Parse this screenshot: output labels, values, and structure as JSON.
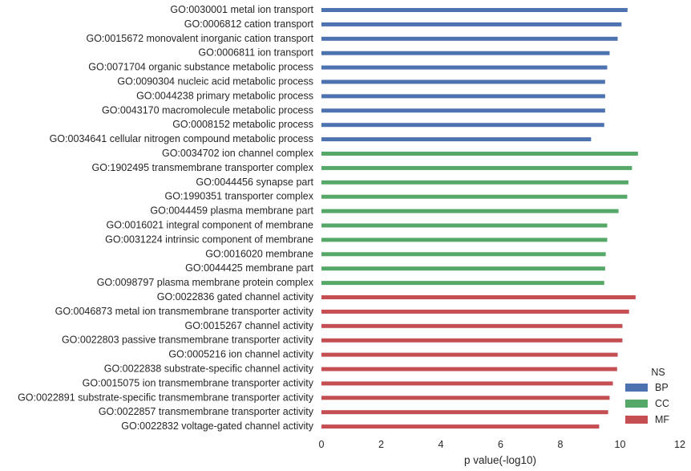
{
  "chart_data": {
    "type": "bar",
    "orientation": "horizontal",
    "xlabel": "p value(-log10)",
    "ylabel": "",
    "xlim": [
      0,
      12
    ],
    "xticks": [
      0,
      2,
      4,
      6,
      8,
      10,
      12
    ],
    "grid": false,
    "legend": {
      "title": "NS",
      "position": "bottom-right",
      "entries": [
        {
          "name": "BP",
          "color": "#4c72b0"
        },
        {
          "name": "CC",
          "color": "#55a868"
        },
        {
          "name": "MF",
          "color": "#c44e52"
        }
      ]
    },
    "bars": [
      {
        "label": "GO:0030001 metal ion transport",
        "group": "BP",
        "value": 10.25
      },
      {
        "label": "GO:0006812 cation transport",
        "group": "BP",
        "value": 10.05
      },
      {
        "label": "GO:0015672 monovalent inorganic cation transport",
        "group": "BP",
        "value": 9.92
      },
      {
        "label": "GO:0006811 ion transport",
        "group": "BP",
        "value": 9.65
      },
      {
        "label": "GO:0071704 organic substance metabolic process",
        "group": "BP",
        "value": 9.57
      },
      {
        "label": "GO:0090304 nucleic acid metabolic process",
        "group": "BP",
        "value": 9.5
      },
      {
        "label": "GO:0044238 primary metabolic process",
        "group": "BP",
        "value": 9.5
      },
      {
        "label": "GO:0043170 macromolecule metabolic process",
        "group": "BP",
        "value": 9.5
      },
      {
        "label": "GO:0008152 metabolic process",
        "group": "BP",
        "value": 9.47
      },
      {
        "label": "GO:0034641 cellular nitrogen compound metabolic process",
        "group": "BP",
        "value": 9.03
      },
      {
        "label": "GO:0034702 ion channel complex",
        "group": "CC",
        "value": 10.6
      },
      {
        "label": "GO:1902495 transmembrane transporter complex",
        "group": "CC",
        "value": 10.4
      },
      {
        "label": "GO:0044456 synapse part",
        "group": "CC",
        "value": 10.28
      },
      {
        "label": "GO:1990351 transporter complex",
        "group": "CC",
        "value": 10.24
      },
      {
        "label": "GO:0044459 plasma membrane part",
        "group": "CC",
        "value": 9.95
      },
      {
        "label": "GO:0016021 integral component of membrane",
        "group": "CC",
        "value": 9.57
      },
      {
        "label": "GO:0031224 intrinsic component of membrane",
        "group": "CC",
        "value": 9.57
      },
      {
        "label": "GO:0016020 membrane",
        "group": "CC",
        "value": 9.52
      },
      {
        "label": "GO:0044425 membrane part",
        "group": "CC",
        "value": 9.5
      },
      {
        "label": "GO:0098797 plasma membrane protein complex",
        "group": "CC",
        "value": 9.47
      },
      {
        "label": "GO:0022836 gated channel activity",
        "group": "MF",
        "value": 10.52
      },
      {
        "label": "GO:0046873 metal ion transmembrane transporter activity",
        "group": "MF",
        "value": 10.3
      },
      {
        "label": "GO:0015267 channel activity",
        "group": "MF",
        "value": 10.08
      },
      {
        "label": "GO:0022803 passive transmembrane transporter activity",
        "group": "MF",
        "value": 10.08
      },
      {
        "label": "GO:0005216 ion channel activity",
        "group": "MF",
        "value": 9.92
      },
      {
        "label": "GO:0022838 substrate-specific channel activity",
        "group": "MF",
        "value": 9.9
      },
      {
        "label": "GO:0015075 ion transmembrane transporter activity",
        "group": "MF",
        "value": 9.76
      },
      {
        "label": "GO:0022891 substrate-specific transmembrane transporter activity",
        "group": "MF",
        "value": 9.65
      },
      {
        "label": "GO:0022857 transmembrane transporter activity",
        "group": "MF",
        "value": 9.6
      },
      {
        "label": "GO:0022832 voltage-gated channel activity",
        "group": "MF",
        "value": 9.3
      }
    ]
  }
}
